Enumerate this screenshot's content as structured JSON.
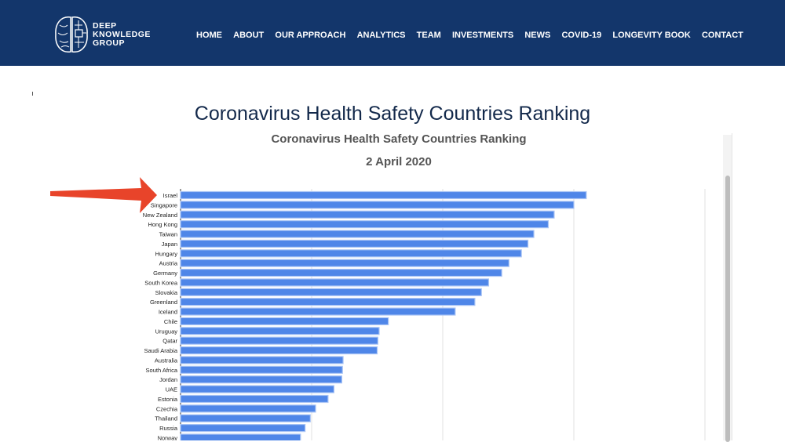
{
  "header": {
    "logo_lines": [
      "DEEP",
      "KNOWLEDGE",
      "GROUP"
    ],
    "nav": [
      "HOME",
      "ABOUT",
      "OUR APPROACH",
      "ANALYTICS",
      "TEAM",
      "INVESTMENTS",
      "NEWS",
      "COVID-19",
      "LONGEVITY BOOK",
      "CONTACT"
    ]
  },
  "page_title": "Coronavirus Health Safety Countries Ranking",
  "colors": {
    "header": "#13366b",
    "bar": "#4f86e8",
    "arrow": "#e8442a"
  },
  "chart_data": {
    "type": "bar",
    "orientation": "horizontal",
    "title": "Coronavirus Health Safety Countries Ranking",
    "subtitle": "2 April 2020",
    "xlabel": "",
    "ylabel": "",
    "xlim": [
      0,
      800
    ],
    "grid": true,
    "categories": [
      "Israel",
      "Singapore",
      "New Zealand",
      "Hong Kong",
      "Taiwan",
      "Japan",
      "Hungary",
      "Austria",
      "Germany",
      "South Korea",
      "Slovakia",
      "Greenland",
      "Iceland",
      "Chile",
      "Uruguay",
      "Qatar",
      "Saudi Arabia",
      "Australia",
      "South Africa",
      "Jordan",
      "UAE",
      "Estonia",
      "Czechia",
      "Thailand",
      "Russia",
      "Norway"
    ],
    "values": [
      619,
      600,
      570,
      561,
      539,
      530,
      520,
      501,
      490,
      470,
      459,
      449,
      419,
      317,
      303,
      301,
      300,
      248,
      247,
      246,
      234,
      225,
      206,
      198,
      190,
      183
    ]
  }
}
